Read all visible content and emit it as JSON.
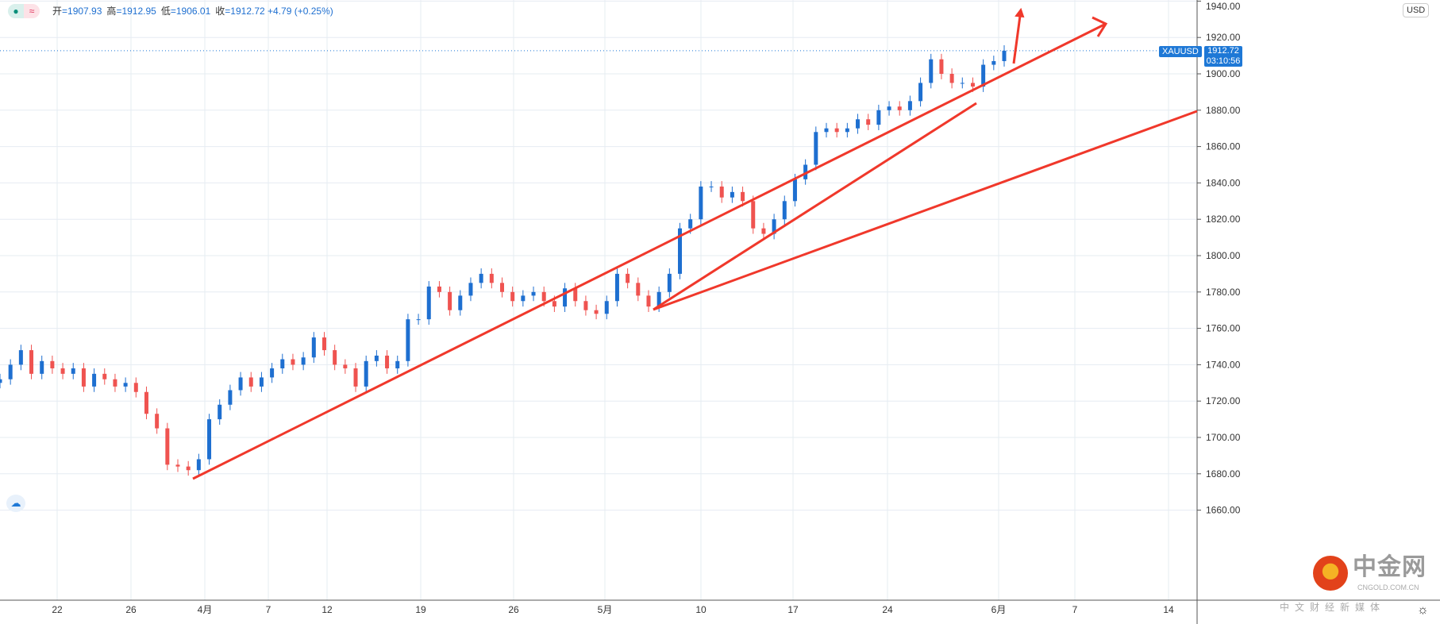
{
  "legend": {
    "open_label": "开",
    "open": "1907.93",
    "high_label": "高",
    "high": "1912.95",
    "low_label": "低",
    "low": "1906.01",
    "close_label": "收",
    "close": "1912.72",
    "change": "+4.79 (+0.25%)"
  },
  "price_tag": {
    "symbol": "XAUUSD",
    "price": "1912.72",
    "countdown": "03:10:56"
  },
  "currency": "USD",
  "watermark": {
    "name": "中金网",
    "url": "CNGOLD.COM.CN",
    "tagline": "中文财经新媒体"
  },
  "colors": {
    "up": "#1e6fd0",
    "down": "#ef5350",
    "grid": "#e6ecf2",
    "annotation": "#f0382b"
  },
  "chart_data": {
    "type": "candlestick",
    "symbol": "XAUUSD",
    "ylim": [
      1655,
      1945
    ],
    "y_ticks": [
      "1660.00",
      "1680.00",
      "1700.00",
      "1720.00",
      "1740.00",
      "1760.00",
      "1780.00",
      "1800.00",
      "1820.00",
      "1840.00",
      "1860.00",
      "1880.00",
      "1900.00",
      "1920.00",
      "1940.00"
    ],
    "x_ticks": [
      "22",
      "26",
      "4月",
      "7",
      "12",
      "19",
      "26",
      "5月",
      "10",
      "17",
      "24",
      "6月",
      "7",
      "14"
    ],
    "closes": [
      1732,
      1740,
      1748,
      1735,
      1742,
      1738,
      1735,
      1738,
      1728,
      1735,
      1732,
      1728,
      1730,
      1725,
      1713,
      1705,
      1685,
      1684,
      1682,
      1688,
      1710,
      1718,
      1726,
      1733,
      1728,
      1733,
      1738,
      1743,
      1740,
      1744,
      1755,
      1748,
      1740,
      1738,
      1728,
      1742,
      1745,
      1738,
      1742,
      1765,
      1765,
      1783,
      1780,
      1770,
      1778,
      1785,
      1790,
      1785,
      1780,
      1775,
      1778,
      1780,
      1775,
      1772,
      1782,
      1775,
      1770,
      1768,
      1775,
      1790,
      1785,
      1778,
      1772,
      1780,
      1790,
      1815,
      1820,
      1838,
      1838,
      1832,
      1835,
      1830,
      1815,
      1812,
      1820,
      1830,
      1842,
      1850,
      1868,
      1870,
      1868,
      1870,
      1875,
      1872,
      1880,
      1882,
      1880,
      1885,
      1895,
      1908,
      1900,
      1895,
      1895,
      1893,
      1905,
      1907,
      1912.72
    ]
  }
}
